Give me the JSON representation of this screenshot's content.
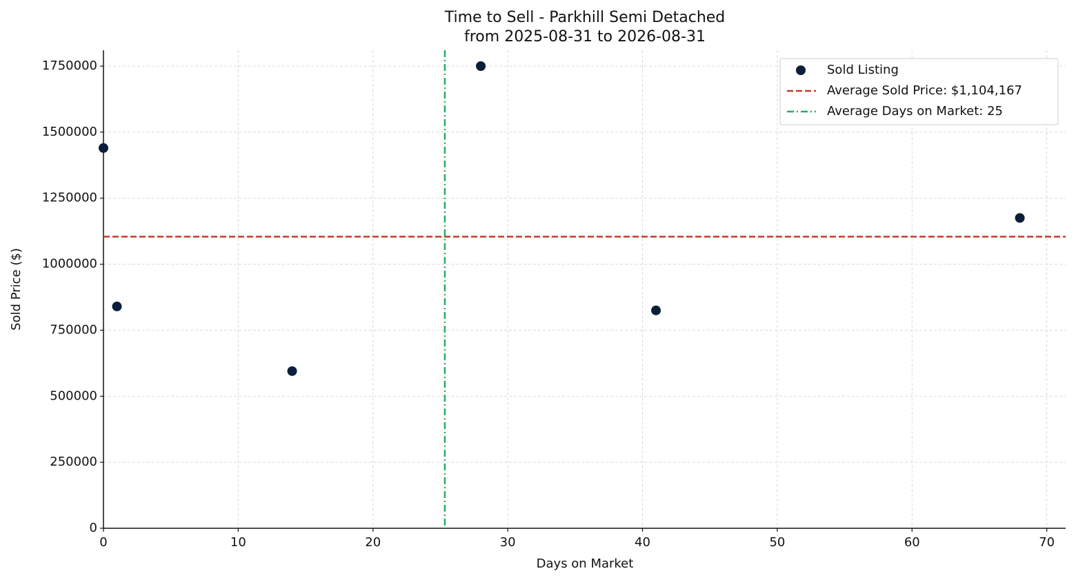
{
  "chart_data": {
    "type": "scatter",
    "title": "Time to Sell - Parkhill Semi Detached",
    "subtitle": "from 2025-08-31 to 2026-08-31",
    "x_label": "Days on Market",
    "y_label": "Sold Price ($)",
    "series": [
      {
        "name": "Sold Listing",
        "color": "#0b1e3a",
        "x": [
          0,
          1,
          14,
          28,
          41,
          68
        ],
        "values": [
          1440000,
          840000,
          595000,
          1750000,
          825000,
          1175000
        ]
      }
    ],
    "hlines": [
      {
        "name": "Average Sold Price: $1,104,167",
        "color": "#c0392b",
        "value": 1104167
      }
    ],
    "vlines": [
      {
        "name": "Average Days on Market: 25",
        "color": "#27ae60",
        "value": 25.33
      }
    ],
    "xlim": [
      0,
      71.4
    ],
    "ylim": [
      0,
      1810000
    ],
    "xticks": [
      0,
      10,
      20,
      30,
      40,
      50,
      60,
      70
    ],
    "yticks": [
      0,
      250000,
      500000,
      750000,
      1000000,
      1250000,
      1500000,
      1750000
    ],
    "grid": true,
    "legend": "upper right"
  }
}
